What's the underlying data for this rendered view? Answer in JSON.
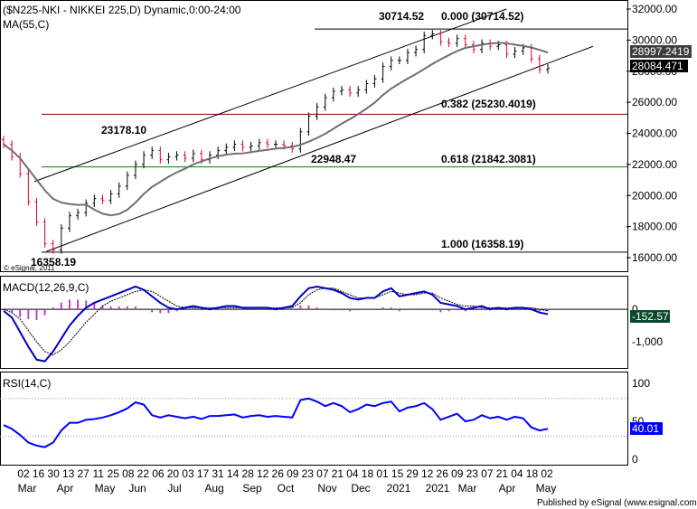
{
  "colors": {
    "background": "#ffffff",
    "up_bar": "#000000",
    "down_bar": "#e0002a",
    "ma": "#707070",
    "fib_red": "#8b0000",
    "fib_green": "#008000",
    "macd_line": "#0000c8",
    "macd_signal": "#000000",
    "macd_hist": "#c040c0",
    "rsi": "#0000ff",
    "tag_blue_bg": "#0000ff",
    "tag_dark_bg": "#000000",
    "tag_text": "#ffffff"
  },
  "header": {
    "title": "($N225-NKI - NIKKEI 225,D) Dynamic,0:00-24:00",
    "ma_label": "MA(55,C)",
    "macd_label": "MACD(12,26,9,C)",
    "rsi_label": "RSI(14,C)",
    "copyright": "© eSignal, 2011",
    "footer": "Published by eSignal (www.esignal.com)"
  },
  "chart_data": [
    {
      "type": "candlestick",
      "panel": "price",
      "y_ticks": [
        "32000.00",
        "30000.00",
        "28000.00",
        "26000.00",
        "24000.00",
        "22000.00",
        "20000.00",
        "18000.00",
        "16000.00"
      ],
      "ylim": [
        15800,
        32300
      ],
      "x_day_labels": [
        "02",
        "16",
        "30",
        "13",
        "27",
        "11",
        "25",
        "08",
        "22",
        "06",
        "20",
        "03",
        "17",
        "31",
        "14",
        "28",
        "12",
        "26",
        "09",
        "23",
        "07",
        "21",
        "04",
        "18",
        "01",
        "15",
        "29",
        "12",
        "26",
        "09",
        "23",
        "07",
        "21",
        "04",
        "18",
        "02"
      ],
      "x_bottom_labels": [
        "Mar",
        "Apr",
        "May",
        "Jun",
        "Jul",
        "Aug",
        "Sep",
        "Oct",
        "Nov",
        "Dec",
        "2021",
        "2021",
        "Mar",
        "Apr",
        "May"
      ],
      "x_extra_labels": [
        "02",
        "16",
        "30",
        "13",
        "27",
        "11",
        "25",
        "08",
        "22",
        "06",
        "20",
        "03",
        "17",
        "31",
        "14",
        "28",
        "12",
        "26",
        "09",
        "23",
        "07",
        "21",
        "04",
        "18",
        "01",
        "15",
        "29",
        "12",
        "26",
        "09",
        "23",
        "07",
        "21",
        "04",
        "18",
        "02"
      ],
      "closes": [
        23300,
        22500,
        21400,
        19600,
        18300,
        16900,
        16500,
        17900,
        18700,
        18900,
        19500,
        19800,
        19700,
        20100,
        20600,
        21300,
        22000,
        22600,
        22900,
        22300,
        22500,
        22600,
        22400,
        22700,
        22300,
        22600,
        22900,
        23100,
        23300,
        23100,
        23200,
        23400,
        23300,
        23300,
        23200,
        23000,
        24100,
        25100,
        25700,
        26300,
        26700,
        26800,
        26600,
        26800,
        27200,
        27500,
        28300,
        28700,
        28700,
        29200,
        29400,
        30300,
        30400,
        29900,
        29800,
        30100,
        29700,
        29400,
        29800,
        29600,
        29700,
        29100,
        29300,
        29500,
        28800,
        28100,
        28200
      ],
      "moving_average": {
        "name": "MA(55,C)",
        "current": "28997.2419"
      },
      "last_price": "28084.471",
      "annotations": [
        {
          "text": "30714.52"
        },
        {
          "text": "0.000 (30714.52)"
        },
        {
          "text": "0.382 (25230.4019)"
        },
        {
          "text": "0.618 (21842.3081)"
        },
        {
          "text": "1.000 (16358.19)"
        },
        {
          "text": "23178.10"
        },
        {
          "text": "22948.47"
        },
        {
          "text": "16358.19"
        }
      ],
      "fib_levels": [
        30714.52,
        25230.4019,
        21842.3081,
        16358.19
      ],
      "channel_points": {
        "upper": [
          [
            0,
            20900
          ],
          [
            66,
            32000
          ]
        ],
        "lower": [
          [
            0,
            16400
          ],
          [
            66,
            28600
          ]
        ]
      }
    },
    {
      "type": "line",
      "panel": "macd",
      "name": "MACD(12,26,9,C)",
      "y_ticks": [
        "0",
        "-1,000"
      ],
      "ylim": [
        -1750,
        950
      ],
      "tag_value": "-152.57",
      "macd": [
        -50,
        -250,
        -700,
        -1150,
        -1550,
        -1600,
        -1300,
        -900,
        -500,
        -200,
        50,
        200,
        300,
        400,
        500,
        600,
        700,
        600,
        400,
        200,
        50,
        0,
        50,
        100,
        50,
        0,
        50,
        100,
        100,
        50,
        50,
        50,
        50,
        0,
        50,
        100,
        400,
        650,
        700,
        650,
        600,
        500,
        350,
        300,
        350,
        350,
        550,
        650,
        400,
        450,
        500,
        550,
        450,
        200,
        150,
        100,
        0,
        50,
        100,
        0,
        50,
        0,
        50,
        50,
        0,
        -100,
        -150
      ],
      "signal": [
        0,
        -100,
        -300,
        -650,
        -1000,
        -1300,
        -1400,
        -1250,
        -1000,
        -700,
        -400,
        -150,
        100,
        250,
        350,
        450,
        550,
        600,
        550,
        400,
        250,
        100,
        50,
        50,
        50,
        50,
        50,
        50,
        50,
        50,
        50,
        50,
        50,
        50,
        50,
        50,
        200,
        450,
        600,
        650,
        650,
        550,
        450,
        350,
        350,
        350,
        450,
        550,
        500,
        450,
        450,
        500,
        500,
        350,
        250,
        150,
        100,
        100,
        50,
        50,
        50,
        50,
        50,
        50,
        50,
        0,
        -50
      ]
    },
    {
      "type": "line",
      "panel": "rsi",
      "name": "RSI(14,C)",
      "y_ticks": [
        "100",
        "50",
        "0"
      ],
      "ylim": [
        0,
        100
      ],
      "tag_value": "40.01",
      "values": [
        45,
        40,
        32,
        22,
        18,
        16,
        22,
        38,
        48,
        48,
        52,
        53,
        55,
        58,
        62,
        67,
        75,
        72,
        58,
        55,
        58,
        56,
        54,
        56,
        53,
        57,
        57,
        58,
        59,
        55,
        57,
        58,
        56,
        57,
        56,
        55,
        78,
        80,
        76,
        70,
        74,
        70,
        62,
        66,
        72,
        70,
        74,
        76,
        63,
        68,
        70,
        74,
        66,
        52,
        56,
        60,
        50,
        52,
        58,
        54,
        56,
        52,
        56,
        54,
        42,
        38,
        40
      ],
      "bands": [
        80,
        30
      ]
    }
  ]
}
